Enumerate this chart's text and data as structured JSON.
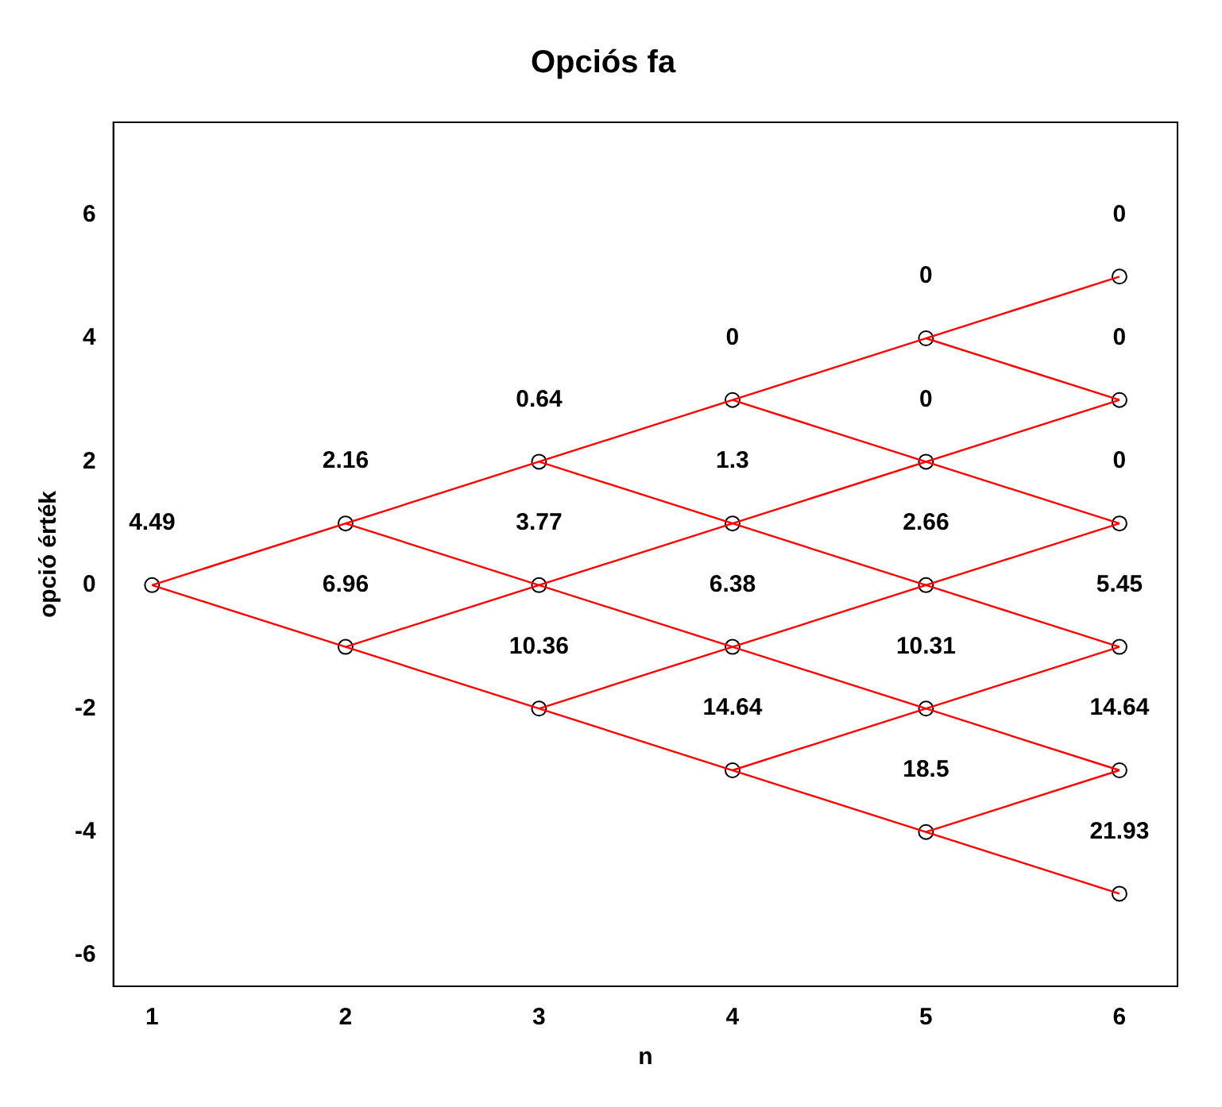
{
  "chart_data": {
    "type": "scatter",
    "title": "Opciós fa",
    "xlabel": "n",
    "ylabel": "opció érték",
    "xlim": [
      0.8,
      6.3
    ],
    "xticks": [
      1,
      2,
      3,
      4,
      5,
      6
    ],
    "ylim": [
      -6.5,
      7.5
    ],
    "yticks": [
      -6,
      -4,
      -2,
      0,
      2,
      4,
      6
    ],
    "grid": false,
    "legend": false,
    "series": [
      {
        "type": "line",
        "marker": "none",
        "color": "#ff0000",
        "x": [
          1,
          6
        ],
        "values": [
          0,
          5
        ]
      },
      {
        "type": "line",
        "marker": "none",
        "color": "#ff0000",
        "x": [
          2,
          6
        ],
        "values": [
          -1,
          3
        ]
      },
      {
        "type": "line",
        "marker": "none",
        "color": "#ff0000",
        "x": [
          3,
          6
        ],
        "values": [
          -2,
          1
        ]
      },
      {
        "type": "line",
        "marker": "none",
        "color": "#ff0000",
        "x": [
          4,
          6
        ],
        "values": [
          -3,
          -1
        ]
      },
      {
        "type": "line",
        "marker": "none",
        "color": "#ff0000",
        "x": [
          5,
          6
        ],
        "values": [
          -4,
          -3
        ]
      },
      {
        "type": "line",
        "marker": "none",
        "color": "#ff0000",
        "x": [
          1,
          6
        ],
        "values": [
          0,
          -5
        ]
      },
      {
        "type": "line",
        "marker": "none",
        "color": "#ff0000",
        "x": [
          2,
          6
        ],
        "values": [
          1,
          -3
        ]
      },
      {
        "type": "line",
        "marker": "none",
        "color": "#ff0000",
        "x": [
          3,
          6
        ],
        "values": [
          2,
          -1
        ]
      },
      {
        "type": "line",
        "marker": "none",
        "color": "#ff0000",
        "x": [
          4,
          6
        ],
        "values": [
          3,
          1
        ]
      },
      {
        "type": "line",
        "marker": "none",
        "color": "#ff0000",
        "x": [
          5,
          6
        ],
        "values": [
          4,
          3
        ]
      },
      {
        "marker": "circle",
        "color": "#000000",
        "x": [
          1,
          2,
          2,
          3,
          3,
          3,
          4,
          4,
          4,
          4,
          5,
          5,
          5,
          5,
          5,
          6,
          6,
          6,
          6,
          6,
          6
        ],
        "values": [
          0,
          1,
          -1,
          2,
          0,
          -2,
          3,
          1,
          -1,
          -3,
          4,
          2,
          0,
          -2,
          -4,
          5,
          3,
          1,
          -1,
          -3,
          -5
        ]
      }
    ],
    "annotations": [
      "4.49",
      "2.16",
      "6.96",
      "0.64",
      "3.77",
      "10.36",
      "0",
      "1.3",
      "6.38",
      "14.64",
      "0",
      "0",
      "2.66",
      "10.31",
      "18.5",
      "0",
      "0",
      "0",
      "5.45",
      "14.64",
      "21.93"
    ]
  }
}
